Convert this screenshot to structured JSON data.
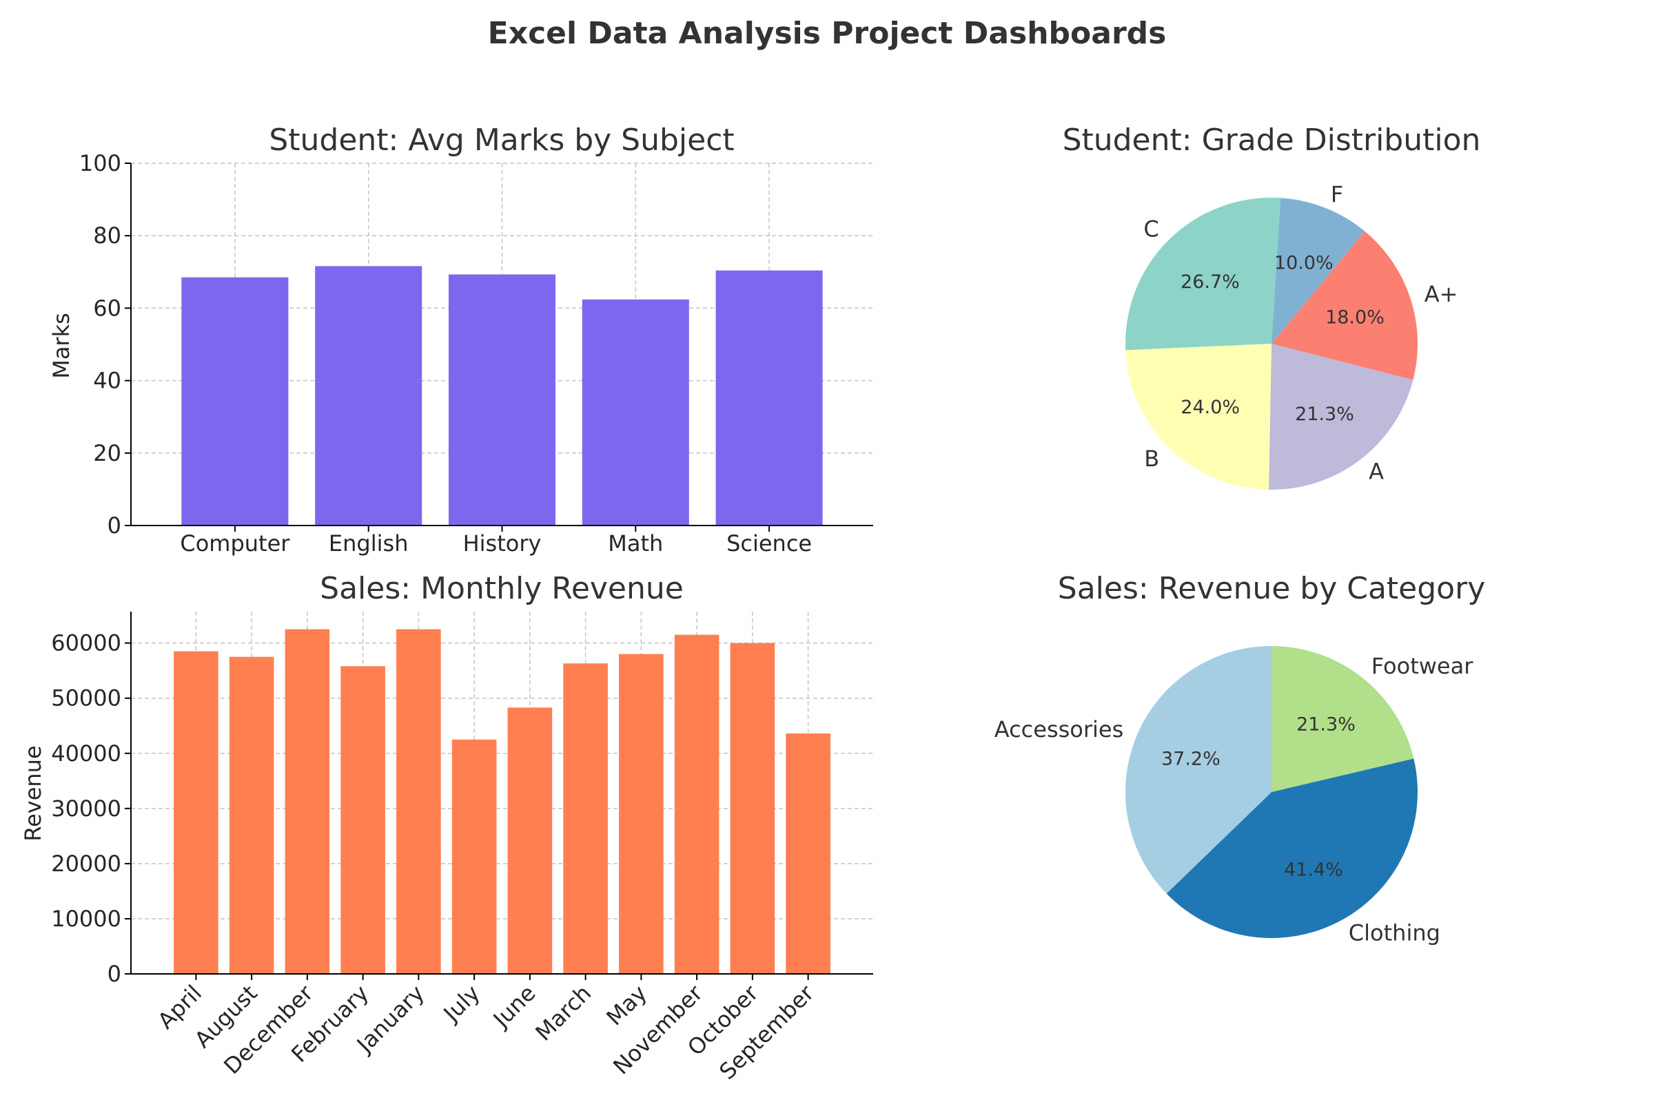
{
  "dashboard": {
    "title": "Excel Data Analysis Project Dashboards"
  },
  "chart_data": [
    {
      "id": "avg_marks",
      "type": "bar",
      "title": "Student: Avg Marks by Subject",
      "xlabel": "",
      "ylabel": "Marks",
      "categories": [
        "Computer",
        "English",
        "History",
        "Math",
        "Science"
      ],
      "values": [
        68.5,
        71.6,
        69.3,
        62.4,
        70.4
      ],
      "ylim": [
        0,
        100
      ],
      "yticks": [
        0,
        20,
        40,
        60,
        80,
        100
      ],
      "grid": true,
      "color": "#7b68ee"
    },
    {
      "id": "grade_distribution",
      "type": "pie",
      "title": "Student: Grade Distribution",
      "labels": [
        "A+",
        "A",
        "B",
        "C",
        "F"
      ],
      "values": [
        18.0,
        21.3,
        24.0,
        26.7,
        10.0
      ],
      "percent_labels": [
        "18.0%",
        "21.3%",
        "24.0%",
        "26.7%",
        "10.0%"
      ],
      "colors": [
        "#fb8072",
        "#bebada",
        "#ffffb3",
        "#8dd3c7",
        "#80b1d3"
      ]
    },
    {
      "id": "monthly_revenue",
      "type": "bar",
      "title": "Sales: Monthly Revenue",
      "xlabel": "",
      "ylabel": "Revenue",
      "categories": [
        "April",
        "August",
        "December",
        "February",
        "January",
        "July",
        "June",
        "March",
        "May",
        "November",
        "October",
        "September"
      ],
      "values": [
        58500,
        57500,
        62500,
        55800,
        62500,
        42500,
        48300,
        56300,
        58000,
        61500,
        60000,
        43600
      ],
      "ylim": [
        0,
        65700
      ],
      "yticks": [
        0,
        10000,
        20000,
        30000,
        40000,
        50000,
        60000
      ],
      "grid": true,
      "color": "#ff7f50"
    },
    {
      "id": "revenue_by_category",
      "type": "pie",
      "title": "Sales: Revenue by Category",
      "labels": [
        "Footwear",
        "Clothing",
        "Accessories"
      ],
      "values": [
        21.3,
        41.4,
        37.2
      ],
      "percent_labels": [
        "21.3%",
        "41.4%",
        "37.2%"
      ],
      "colors": [
        "#b2df8a",
        "#1f78b4",
        "#a6cee3"
      ]
    }
  ]
}
